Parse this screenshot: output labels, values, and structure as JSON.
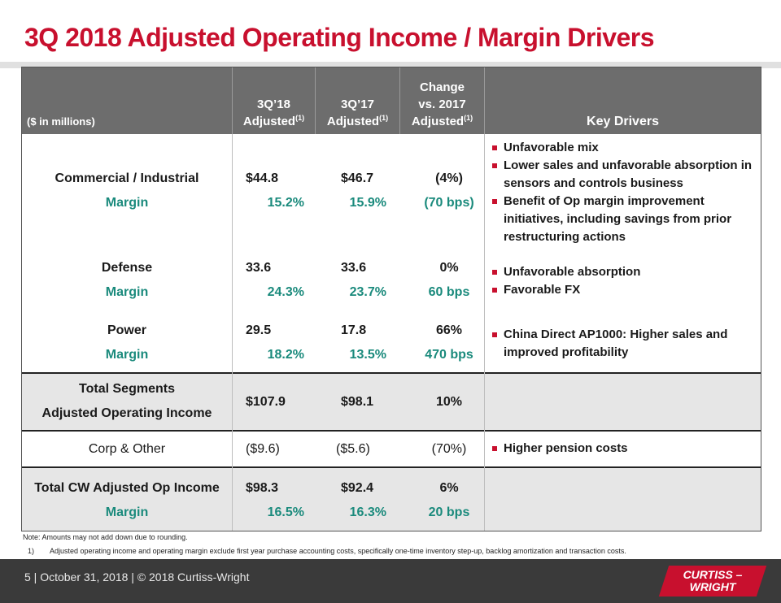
{
  "title": "3Q 2018 Adjusted Operating Income / Margin Drivers",
  "header": {
    "units": "($ in millions)",
    "col2_line1": "3Q’18",
    "col2_line2": "Adjusted",
    "col2_sup": "(1)",
    "col3_line1": "3Q’17",
    "col3_line2": "Adjusted",
    "col3_sup": "(1)",
    "col4_line1": "Change",
    "col4_line2": "vs. 2017",
    "col4_line3": "Adjusted",
    "col4_sup": "(1)",
    "col5": "Key Drivers"
  },
  "segments": {
    "commercial": {
      "name": "Commercial / Industrial",
      "q18": "$44.8",
      "q17": "$46.7",
      "change": "(4%)",
      "margin_label": "Margin",
      "margin18": "15.2%",
      "margin17": "15.9%",
      "margin_change": "(70 bps)",
      "drivers": [
        "Unfavorable mix",
        "Lower sales and unfavorable absorption in sensors and controls business",
        "Benefit of Op margin improvement initiatives, including savings from prior restructuring actions"
      ]
    },
    "defense": {
      "name": "Defense",
      "q18": "33.6",
      "q17": "33.6",
      "change": "0%",
      "margin_label": "Margin",
      "margin18": "24.3%",
      "margin17": "23.7%",
      "margin_change": "60 bps",
      "drivers": [
        "Unfavorable absorption",
        "Favorable FX"
      ]
    },
    "power": {
      "name": "Power",
      "q18": "29.5",
      "q17": "17.8",
      "change": "66%",
      "margin_label": "Margin",
      "margin18": "18.2%",
      "margin17": "13.5%",
      "margin_change": "470 bps",
      "drivers": [
        "China Direct AP1000: Higher sales and improved profitability"
      ]
    }
  },
  "total_segments": {
    "label_line1": "Total Segments",
    "label_line2": "Adjusted Operating Income",
    "q18": "$107.9",
    "q17": "$98.1",
    "change": "10%"
  },
  "corp": {
    "label": "Corp & Other",
    "q18": "($9.6)",
    "q17": "($5.6)",
    "change": "(70%)",
    "drivers": [
      "Higher pension costs"
    ]
  },
  "total_cw": {
    "label": "Total CW Adjusted Op Income",
    "q18": "$98.3",
    "q17": "$92.4",
    "change": "6%",
    "margin_label": "Margin",
    "margin18": "16.5%",
    "margin17": "16.3%",
    "margin_change": "20 bps"
  },
  "notes": {
    "note": "Note: Amounts may not add down due to rounding.",
    "fn_num": "1)",
    "fn_text": "Adjusted operating income and operating margin exclude first year purchase accounting costs, specifically one-time inventory step-up, backlog amortization and transaction costs."
  },
  "footer": {
    "text": "5  |  October 31, 2018  |  © 2018 Curtiss-Wright",
    "logo_line1": "CURTISS –",
    "logo_line2": "WRIGHT"
  },
  "colors": {
    "accent_red": "#c8102e",
    "margin_green": "#1a8a7c",
    "header_gray": "#6d6d6d"
  }
}
